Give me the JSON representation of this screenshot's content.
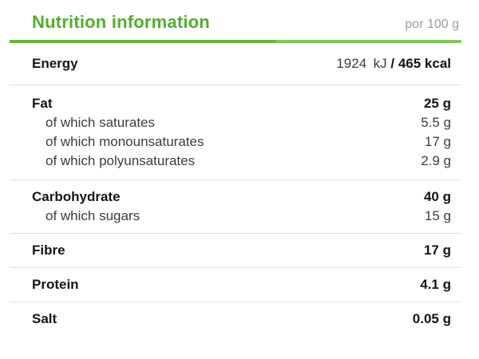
{
  "header": {
    "title": "Nutrition information",
    "per": "por 100 g"
  },
  "colors": {
    "green": "#52ae30",
    "rule_left": "#68b53a",
    "rule_right": "#81c75a",
    "divider": "#e0e0e0",
    "text": "#141414",
    "subtext": "#3c3c3c",
    "muted": "#9d9d9d"
  },
  "table": {
    "sections": [
      {
        "rows": [
          {
            "label": "Energy",
            "bold": true,
            "value_parts": [
              {
                "text": "1924 kJ ",
                "bold": false
              },
              {
                "text": "/ 465 kcal",
                "bold": true
              }
            ]
          }
        ]
      },
      {
        "rows": [
          {
            "label": "Fat",
            "bold": true,
            "value": "25 g"
          },
          {
            "label": "of which saturates",
            "bold": false,
            "indent": true,
            "value": "5.5 g"
          },
          {
            "label": "of which monounsaturates",
            "bold": false,
            "indent": true,
            "value": "17 g"
          },
          {
            "label": "of which polyunsaturates",
            "bold": false,
            "indent": true,
            "value": "2.9 g"
          }
        ]
      },
      {
        "rows": [
          {
            "label": "Carbohydrate",
            "bold": true,
            "value": "40 g"
          },
          {
            "label": "of which sugars",
            "bold": false,
            "indent": true,
            "value": "15 g"
          }
        ]
      },
      {
        "rows": [
          {
            "label": "Fibre",
            "bold": true,
            "value": "17 g"
          }
        ]
      },
      {
        "rows": [
          {
            "label": "Protein",
            "bold": true,
            "value": "4.1 g"
          }
        ]
      },
      {
        "rows": [
          {
            "label": "Salt",
            "bold": true,
            "value": "0.05 g"
          }
        ]
      }
    ]
  }
}
